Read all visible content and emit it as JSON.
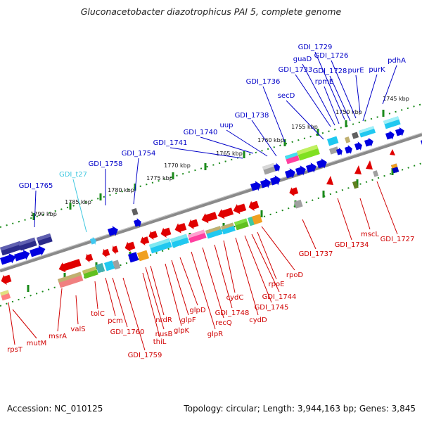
{
  "title": "Gluconacetobacter diazotrophicus PAI 5, complete genome",
  "footer": {
    "accession": "Accession: NC_010125",
    "summary": "Topology: circular; Length: 3,944,163 bp; Genes: 3,845"
  },
  "colors": {
    "upper_label": "#0000c8",
    "upper_light_label": "#40c8e0",
    "lower_label": "#d00000",
    "backbone": "#808080",
    "dots": "#1a8a1a"
  },
  "tick_labels": [
    "1745 kbp",
    "1750 kbp",
    "1755 kbp",
    "1760 kbp",
    "1765 kbp",
    "1770 kbp",
    "1775 kbp",
    "1780 kbp",
    "1785 kbp",
    "1790 kbp"
  ],
  "upper_labels": [
    "GDI_1765",
    "GDI_t27",
    "GDI_1758",
    "GDI_1754",
    "GDI_1741",
    "GDI_1740",
    "uup",
    "GDI_1738",
    "GDI_1736",
    "secD",
    "GDI_1733",
    "guaD",
    "GDI_1729",
    "GDI_1726",
    "GDI_1728",
    "rpmE",
    "purE",
    "purK",
    "pdhA"
  ],
  "lower_labels": [
    "rpsT",
    "mutM",
    "msrA",
    "valS",
    "tolC",
    "pcm",
    "GDI_1760",
    "GDI_1759",
    "thiL",
    "nusB",
    "nrdR",
    "glpK",
    "glpF",
    "glpD",
    "glpR",
    "recQ",
    "GDI_1748",
    "cydC",
    "cydD",
    "GDI_1745",
    "GDI_1744",
    "rpoE",
    "rpoD",
    "GDI_1737",
    "GDI_1734",
    "mscL",
    "GDI_1727"
  ]
}
